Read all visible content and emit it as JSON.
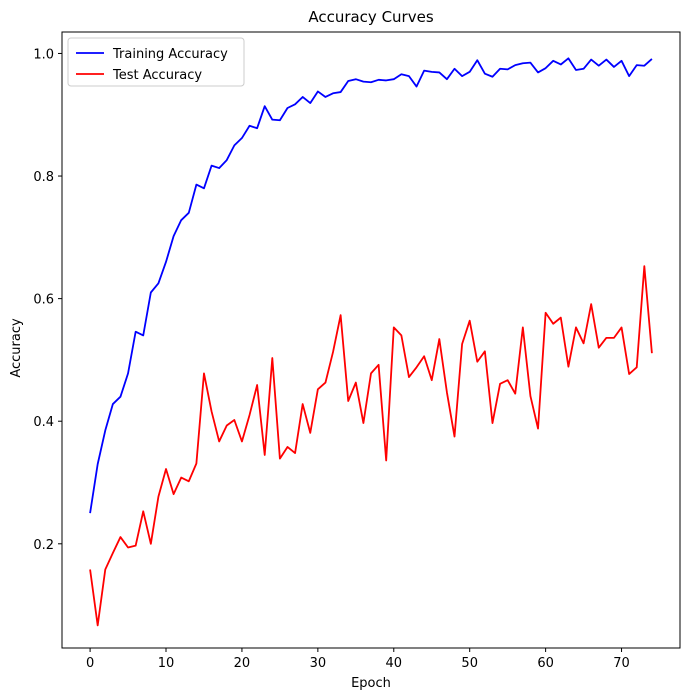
{
  "chart_data": {
    "type": "line",
    "title": "Accuracy Curves",
    "xlabel": "Epoch",
    "ylabel": "Accuracy",
    "xlim": [
      -3.7,
      77.7
    ],
    "ylim": [
      0.03,
      1.035
    ],
    "xticks": [
      0,
      10,
      20,
      30,
      40,
      50,
      60,
      70
    ],
    "yticks": [
      0.2,
      0.4,
      0.6,
      0.8,
      1.0
    ],
    "ytick_labels": [
      "0.2",
      "0.4",
      "0.6",
      "0.8",
      "1.0"
    ],
    "grid": false,
    "legend": {
      "position": "top-left"
    },
    "x": [
      0,
      1,
      2,
      3,
      4,
      5,
      6,
      7,
      8,
      9,
      10,
      11,
      12,
      13,
      14,
      15,
      16,
      17,
      18,
      19,
      20,
      21,
      22,
      23,
      24,
      25,
      26,
      27,
      28,
      29,
      30,
      31,
      32,
      33,
      34,
      35,
      36,
      37,
      38,
      39,
      40,
      41,
      42,
      43,
      44,
      45,
      46,
      47,
      48,
      49,
      50,
      51,
      52,
      53,
      54,
      55,
      56,
      57,
      58,
      59,
      60,
      61,
      62,
      63,
      64,
      65,
      66,
      67,
      68,
      69,
      70,
      71,
      72,
      73,
      74
    ],
    "series": [
      {
        "name": "Training Accuracy",
        "color": "#0000ff",
        "values": [
          0.25,
          0.33,
          0.385,
          0.428,
          0.44,
          0.478,
          0.546,
          0.54,
          0.61,
          0.625,
          0.66,
          0.702,
          0.728,
          0.74,
          0.786,
          0.78,
          0.817,
          0.813,
          0.826,
          0.85,
          0.862,
          0.882,
          0.878,
          0.914,
          0.892,
          0.891,
          0.911,
          0.917,
          0.929,
          0.919,
          0.938,
          0.929,
          0.935,
          0.937,
          0.955,
          0.958,
          0.954,
          0.953,
          0.957,
          0.956,
          0.958,
          0.966,
          0.963,
          0.946,
          0.972,
          0.97,
          0.969,
          0.958,
          0.975,
          0.963,
          0.97,
          0.989,
          0.967,
          0.962,
          0.975,
          0.974,
          0.981,
          0.984,
          0.985,
          0.969,
          0.976,
          0.988,
          0.982,
          0.992,
          0.973,
          0.975,
          0.99,
          0.98,
          0.99,
          0.978,
          0.988,
          0.963,
          0.981,
          0.98,
          0.991
        ]
      },
      {
        "name": "Test Accuracy",
        "color": "#ff0000",
        "values": [
          0.158,
          0.067,
          0.158,
          0.185,
          0.211,
          0.194,
          0.197,
          0.253,
          0.2,
          0.277,
          0.322,
          0.281,
          0.308,
          0.302,
          0.331,
          0.478,
          0.416,
          0.367,
          0.393,
          0.402,
          0.367,
          0.41,
          0.459,
          0.345,
          0.503,
          0.339,
          0.358,
          0.348,
          0.428,
          0.381,
          0.452,
          0.463,
          0.513,
          0.573,
          0.433,
          0.463,
          0.397,
          0.478,
          0.492,
          0.336,
          0.553,
          0.54,
          0.472,
          0.488,
          0.506,
          0.467,
          0.534,
          0.447,
          0.375,
          0.526,
          0.564,
          0.497,
          0.514,
          0.397,
          0.461,
          0.467,
          0.445,
          0.553,
          0.441,
          0.388,
          0.577,
          0.559,
          0.569,
          0.489,
          0.553,
          0.527,
          0.591,
          0.52,
          0.536,
          0.536,
          0.553,
          0.477,
          0.488,
          0.653,
          0.511
        ]
      }
    ]
  }
}
